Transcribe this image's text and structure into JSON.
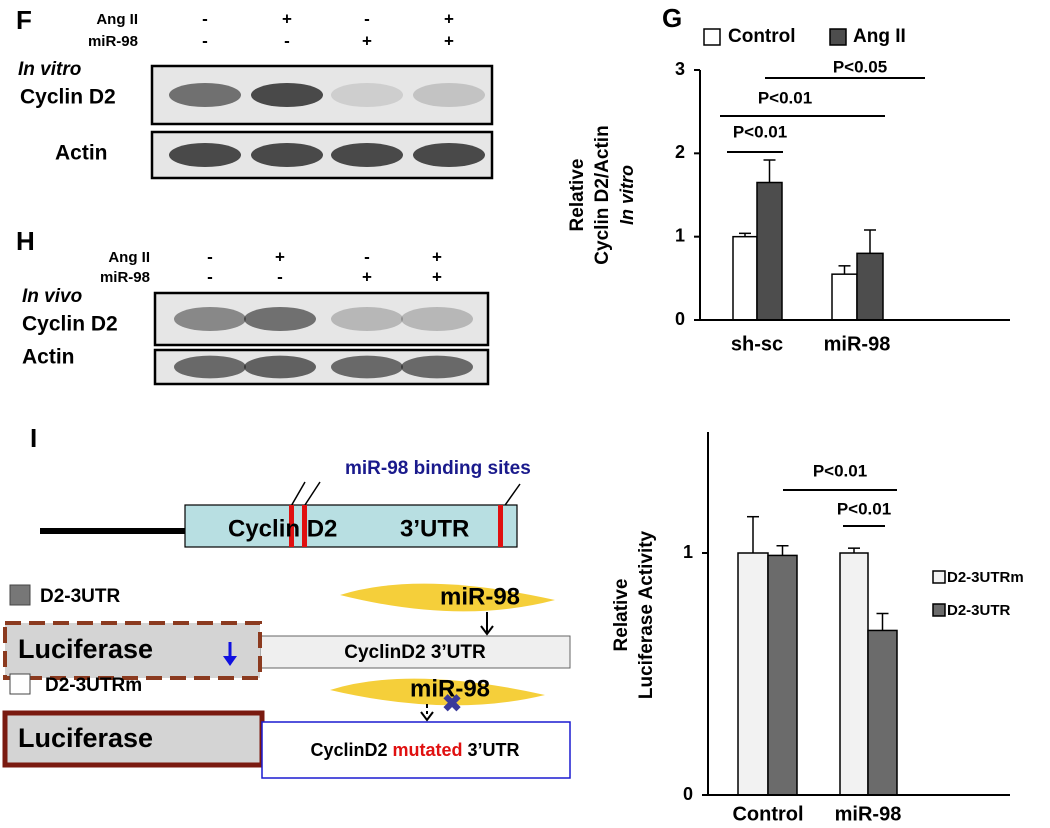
{
  "blots": [
    {
      "letter": "F",
      "condition": "In vitro",
      "rows": [
        "Ang II",
        "miR-98"
      ],
      "signs": [
        [
          "-",
          "+",
          "-",
          "+"
        ],
        [
          "-",
          "-",
          "+",
          "+"
        ]
      ],
      "bands": [
        "Cyclin D2",
        "Actin"
      ]
    },
    {
      "letter": "H",
      "condition": "In vivo",
      "rows": [
        "Ang II",
        "miR-98"
      ],
      "signs": [
        [
          "-",
          "+",
          "-",
          "+"
        ],
        [
          "-",
          "-",
          "+",
          "+"
        ]
      ],
      "bands": [
        "Cyclin D2",
        "Actin"
      ]
    }
  ],
  "diagram": {
    "letter": "I",
    "sites_label": "miR-98 binding sites",
    "gene_label": [
      "Cyclin D2",
      "3’UTR"
    ],
    "constructs": [
      {
        "key": "D2-3UTR",
        "reporter": "Luciferase",
        "mirna": "miR-98",
        "utr": [
          "CyclinD2 3’UTR"
        ]
      },
      {
        "key": "D2-3UTRm",
        "reporter": "Luciferase",
        "mirna": "miR-98",
        "utr": [
          "CyclinD2",
          "mutated",
          "3’UTR"
        ]
      }
    ]
  },
  "chart_data": [
    {
      "type": "bar",
      "panel_label": "G",
      "y_label": [
        "Relative",
        "Cyclin D2/Actin"
      ],
      "y_label_note": "In vitro",
      "categories": [
        "sh-sc",
        "miR-98"
      ],
      "series": [
        {
          "name": "Control",
          "color": "#ffffff",
          "values": [
            1.0,
            0.55
          ],
          "errors": [
            0.04,
            0.1
          ]
        },
        {
          "name": "Ang II",
          "color": "#4d4d4d",
          "values": [
            1.65,
            0.8
          ],
          "errors": [
            0.27,
            0.28
          ]
        }
      ],
      "ylim": [
        0,
        3
      ],
      "yticks": [
        0,
        1,
        2,
        3
      ],
      "annotations": [
        "P<0.01",
        "P<0.01",
        "P<0.05"
      ]
    },
    {
      "type": "bar",
      "y_label": [
        "Relative",
        "Luciferase Activity"
      ],
      "categories": [
        "Control",
        "miR-98"
      ],
      "series": [
        {
          "name": "D2-3UTRm",
          "color": "#f2f2f2",
          "values": [
            1.0,
            1.0
          ],
          "errors": [
            0.15,
            0.02
          ]
        },
        {
          "name": "D2-3UTR",
          "color": "#6b6b6b",
          "values": [
            0.99,
            0.68
          ],
          "errors": [
            0.04,
            0.07
          ]
        }
      ],
      "ylim": [
        0,
        1.5
      ],
      "yticks": [
        0,
        1
      ],
      "annotations": [
        "P<0.01",
        "P<0.01"
      ]
    }
  ]
}
